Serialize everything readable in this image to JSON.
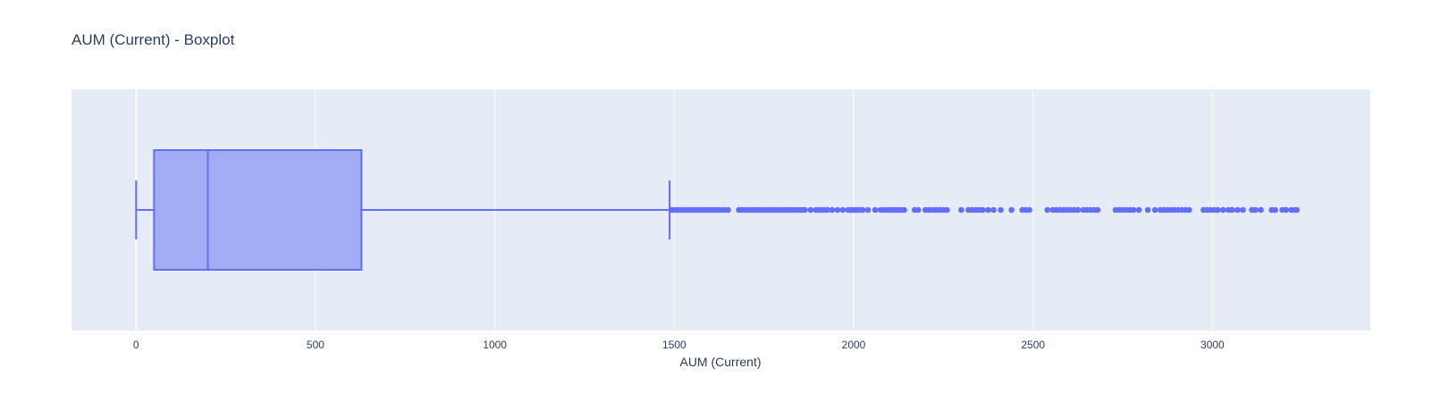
{
  "chart_data": {
    "type": "box",
    "title": "AUM (Current) - Boxplot",
    "xlabel": "AUM (Current)",
    "ylabel": "",
    "xlim": [
      -180,
      3440
    ],
    "x_ticks": [
      0,
      500,
      1000,
      1500,
      2000,
      2500,
      3000
    ],
    "grid": true,
    "orientation": "horizontal",
    "box": {
      "lower_fence": 0,
      "q1": 50,
      "median": 200,
      "q3": 628,
      "upper_fence": 1487
    },
    "outliers": [
      1492,
      1498,
      1505,
      1512,
      1520,
      1528,
      1536,
      1544,
      1552,
      1560,
      1568,
      1576,
      1584,
      1592,
      1600,
      1608,
      1616,
      1624,
      1632,
      1640,
      1650,
      1680,
      1688,
      1696,
      1704,
      1712,
      1720,
      1728,
      1736,
      1744,
      1752,
      1760,
      1768,
      1776,
      1784,
      1792,
      1800,
      1808,
      1816,
      1824,
      1832,
      1840,
      1848,
      1856,
      1864,
      1880,
      1895,
      1903,
      1911,
      1919,
      1927,
      1940,
      1955,
      1970,
      1985,
      1993,
      2001,
      2009,
      2017,
      2025,
      2040,
      2060,
      2075,
      2085,
      2093,
      2101,
      2109,
      2117,
      2125,
      2133,
      2141,
      2170,
      2180,
      2200,
      2210,
      2220,
      2230,
      2240,
      2250,
      2260,
      2300,
      2320,
      2330,
      2340,
      2350,
      2360,
      2375,
      2390,
      2410,
      2440,
      2470,
      2480,
      2490,
      2540,
      2555,
      2565,
      2575,
      2585,
      2595,
      2605,
      2615,
      2625,
      2640,
      2650,
      2660,
      2670,
      2680,
      2730,
      2740,
      2750,
      2760,
      2770,
      2780,
      2795,
      2820,
      2840,
      2855,
      2865,
      2875,
      2885,
      2895,
      2905,
      2915,
      2925,
      2935,
      2975,
      2985,
      2995,
      3005,
      3015,
      3030,
      3045,
      3055,
      3070,
      3085,
      3110,
      3120,
      3135,
      3165,
      3175,
      3195,
      3205,
      3220,
      3230,
      3235
    ],
    "colors": {
      "box_fill": "#a2acf5",
      "box_line": "#636efa",
      "plot_bg": "#e5ecf6",
      "grid": "#ffffff",
      "text": "#2a3f5f"
    }
  }
}
